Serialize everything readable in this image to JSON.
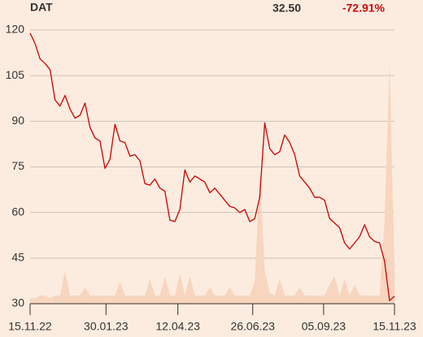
{
  "chart_data": {
    "type": "line",
    "header": {
      "symbol": "DAT",
      "last": "32.50",
      "change": "-72.91%"
    },
    "x": [
      "2022-11-15",
      "2022-11-20",
      "2022-11-25",
      "2022-11-30",
      "2022-12-05",
      "2022-12-10",
      "2022-12-15",
      "2022-12-20",
      "2022-12-25",
      "2022-12-30",
      "2023-01-04",
      "2023-01-09",
      "2023-01-14",
      "2023-01-19",
      "2023-01-24",
      "2023-01-29",
      "2023-02-03",
      "2023-02-08",
      "2023-02-13",
      "2023-02-18",
      "2023-02-23",
      "2023-02-28",
      "2023-03-05",
      "2023-03-10",
      "2023-03-15",
      "2023-03-20",
      "2023-03-25",
      "2023-03-30",
      "2023-04-04",
      "2023-04-09",
      "2023-04-14",
      "2023-04-19",
      "2023-04-24",
      "2023-04-29",
      "2023-05-04",
      "2023-05-09",
      "2023-05-14",
      "2023-05-19",
      "2023-05-24",
      "2023-05-29",
      "2023-06-03",
      "2023-06-08",
      "2023-06-13",
      "2023-06-18",
      "2023-06-23",
      "2023-06-28",
      "2023-07-03",
      "2023-07-08",
      "2023-07-13",
      "2023-07-18",
      "2023-07-23",
      "2023-07-28",
      "2023-08-02",
      "2023-08-07",
      "2023-08-12",
      "2023-08-17",
      "2023-08-22",
      "2023-08-27",
      "2023-09-01",
      "2023-09-06",
      "2023-09-11",
      "2023-09-16",
      "2023-09-21",
      "2023-09-26",
      "2023-10-01",
      "2023-10-06",
      "2023-10-11",
      "2023-10-16",
      "2023-10-21",
      "2023-10-26",
      "2023-10-31",
      "2023-11-05",
      "2023-11-10",
      "2023-11-15"
    ],
    "series": [
      {
        "name": "Price",
        "color": "#cc0000",
        "values": [
          119,
          115.5,
          110.5,
          109,
          107,
          97,
          95,
          98.5,
          94,
          91,
          92,
          96,
          88,
          84.5,
          83.5,
          74.5,
          77.5,
          89,
          83.5,
          83,
          78.5,
          79,
          77,
          69.5,
          69,
          71,
          68,
          67,
          57.5,
          57,
          61,
          74,
          70,
          72,
          71,
          70,
          66.5,
          68,
          66,
          64,
          62,
          61.5,
          60,
          61,
          57,
          58,
          65,
          89.5,
          81,
          79,
          80,
          85.5,
          83,
          79,
          72,
          70,
          68,
          65,
          65,
          64,
          58,
          56.5,
          55,
          50,
          48,
          50,
          52,
          56,
          52,
          50.5,
          50,
          44,
          31,
          32.5
        ]
      },
      {
        "name": "Volume",
        "color": "#f7d5bf",
        "axis": "y2",
        "values": [
          2,
          2,
          3,
          3,
          2,
          3,
          3,
          12,
          3,
          3,
          3,
          6,
          3,
          3,
          3,
          3,
          3,
          3,
          8,
          3,
          3,
          3,
          3,
          3,
          9,
          3,
          3,
          10,
          3,
          3,
          11,
          3,
          10,
          3,
          3,
          3,
          6,
          3,
          3,
          3,
          6,
          3,
          3,
          3,
          3,
          8,
          48,
          12,
          4,
          3,
          9,
          3,
          3,
          3,
          6,
          3,
          3,
          3,
          3,
          3,
          7,
          10,
          3,
          9,
          3,
          7,
          3,
          3,
          3,
          3,
          3,
          30,
          88,
          12
        ]
      }
    ],
    "xlim": [
      "2022-11-15",
      "2023-11-15"
    ],
    "xticks": [
      {
        "value": "2022-11-15",
        "label": "15.11.22"
      },
      {
        "value": "2023-01-30",
        "label": "30.01.23"
      },
      {
        "value": "2023-04-12",
        "label": "12.04.23"
      },
      {
        "value": "2023-06-26",
        "label": "26.06.23"
      },
      {
        "value": "2023-09-05",
        "label": "05.09.23"
      },
      {
        "value": "2023-11-15",
        "label": "15.11.23"
      }
    ],
    "ylim": [
      30,
      120
    ],
    "yticks": [
      30,
      45,
      60,
      75,
      90,
      105,
      120
    ],
    "y2lim": [
      0,
      100
    ],
    "grid": true
  }
}
